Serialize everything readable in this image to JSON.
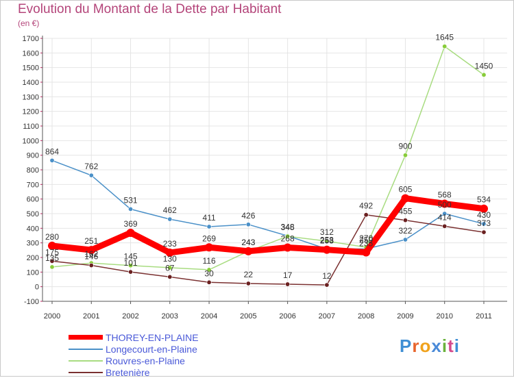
{
  "title": "Evolution du Montant de la Dette par Habitant",
  "subtitle": "(en €)",
  "logo": {
    "text": "Proxiti",
    "letter_colors": [
      "#3f8fd4",
      "#e8642c",
      "#f0a21c",
      "#4a8ad8",
      "#6ab23c",
      "#d44a8c",
      "#3f8fd4"
    ]
  },
  "chart_data": {
    "type": "line",
    "title": "Evolution du Montant de la Dette par Habitant",
    "ylabel": "(en €)",
    "xlabel": "",
    "x": [
      "2000",
      "2001",
      "2002",
      "2003",
      "2004",
      "2005",
      "2006",
      "2007",
      "2008",
      "2009",
      "2010",
      "2011"
    ],
    "ylim": [
      -100,
      1700
    ],
    "yticks": [
      -100,
      0,
      100,
      200,
      300,
      400,
      500,
      600,
      700,
      800,
      900,
      1000,
      1100,
      1200,
      1300,
      1400,
      1500,
      1600,
      1700
    ],
    "grid": true,
    "legend_position": "bottom-left",
    "series": [
      {
        "name": "Longecourt-en-Plaine",
        "color": "#4a90c8",
        "marker": "#4a90c8",
        "values": [
          864,
          762,
          531,
          462,
          411,
          426,
          348,
          258,
          259,
          322,
          500,
          430
        ]
      },
      {
        "name": "Rouvres-en-Plaine",
        "color": "#a8dc80",
        "marker": "#88cc3a",
        "values": [
          135,
          162,
          145,
          130,
          116,
          243,
          345,
          312,
          270,
          900,
          1645,
          1450
        ]
      },
      {
        "name": "Bretenière",
        "color": "#7a3030",
        "marker": "#6a2020",
        "values": [
          175,
          146,
          101,
          67,
          30,
          22,
          17,
          12,
          492,
          455,
          414,
          373
        ]
      },
      {
        "name": "THOREY-EN-PLAINE",
        "color": "#ff0000",
        "marker": "#ff0000",
        "values": [
          280,
          251,
          369,
          233,
          269,
          243,
          268,
          253,
          235,
          605,
          568,
          534
        ]
      }
    ],
    "legend_order": [
      "THOREY-EN-PLAINE",
      "Longecourt-en-Plaine",
      "Rouvres-en-Plaine",
      "Bretenière"
    ]
  }
}
